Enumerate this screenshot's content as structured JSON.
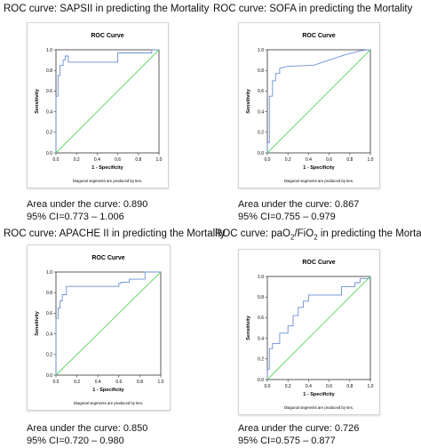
{
  "diagonal_note": "Diagonal segments are produced by ties.",
  "panels": [
    {
      "caption": "ROC curve: SAPSII in predicting the Mortality",
      "auc_label": "Area under the curve: 0.890",
      "ci_label": "95% CI=0.773 – 1.006"
    },
    {
      "caption": "ROC curve: SOFA in predicting the Mortality",
      "auc_label": "Area under the curve: 0.867",
      "ci_label": "95% CI=0.755 – 0.979"
    },
    {
      "caption": "ROC curve: APACHE II in predicting the Mortality",
      "auc_label": "Area under the curve: 0.850",
      "ci_label": "95% CI=0.720 – 0.980"
    },
    {
      "caption_prefix": "ROC curve: paO",
      "caption_sub1": "2",
      "caption_mid": "/FiO",
      "caption_sub2": "2",
      "caption_suffix": " in predicting the Mortality",
      "auc_label": "Area under the curve: 0.726",
      "ci_label": "95% CI=0.575 – 0.877"
    }
  ],
  "chart_data": [
    {
      "type": "line",
      "title": "ROC Curve",
      "xlabel": "1 - Specificity",
      "ylabel": "Sensitivity",
      "xlim": [
        0,
        1
      ],
      "ylim": [
        0,
        1
      ],
      "x_ticks": [
        "0.0",
        "0.2",
        "0.4",
        "0.6",
        "0.8",
        "1.0"
      ],
      "y_ticks": [
        "0.0",
        "0.2",
        "0.4",
        "0.6",
        "0.8",
        "1.0"
      ],
      "series": [
        {
          "color": "#6b8fd6",
          "x": [
            0,
            0,
            0.02,
            0.02,
            0.04,
            0.04,
            0.07,
            0.07,
            0.09,
            0.09,
            0.12,
            0.12,
            0.53,
            0.53,
            0.6,
            0.6,
            0.93,
            0.93,
            1.0
          ],
          "y": [
            0,
            0.55,
            0.55,
            0.75,
            0.75,
            0.85,
            0.85,
            0.9,
            0.9,
            0.94,
            0.94,
            0.88,
            0.88,
            0.88,
            0.88,
            0.97,
            0.97,
            1.0,
            1.0
          ]
        },
        {
          "color": "#5cd65c",
          "x": [
            0,
            1
          ],
          "y": [
            0,
            1
          ]
        }
      ]
    },
    {
      "type": "line",
      "title": "ROC Curve",
      "xlabel": "1 - Specificity",
      "ylabel": "Sensitivity",
      "xlim": [
        0,
        1
      ],
      "ylim": [
        0,
        1
      ],
      "x_ticks": [
        "0.0",
        "0.2",
        "0.4",
        "0.6",
        "0.8",
        "1.0"
      ],
      "y_ticks": [
        "0.0",
        "0.2",
        "0.4",
        "0.6",
        "0.8",
        "1.0"
      ],
      "series": [
        {
          "color": "#6b8fd6",
          "x": [
            0,
            0,
            0.02,
            0.02,
            0.05,
            0.05,
            0.08,
            0.08,
            0.12,
            0.12,
            0.2,
            0.45,
            0.6,
            0.75,
            0.9,
            0.97,
            1.0
          ],
          "y": [
            0,
            0.1,
            0.1,
            0.55,
            0.55,
            0.7,
            0.7,
            0.77,
            0.77,
            0.82,
            0.84,
            0.85,
            0.9,
            0.95,
            0.99,
            1.0,
            1.0
          ]
        },
        {
          "color": "#5cd65c",
          "x": [
            0,
            1
          ],
          "y": [
            0,
            1
          ]
        }
      ]
    },
    {
      "type": "line",
      "title": "ROC Curve",
      "xlabel": "1 - Specificity",
      "ylabel": "Sensitivity",
      "xlim": [
        0,
        1
      ],
      "ylim": [
        0,
        1
      ],
      "x_ticks": [
        "0.0",
        "0.2",
        "0.4",
        "0.6",
        "0.8",
        "1.0"
      ],
      "y_ticks": [
        "0.0",
        "0.2",
        "0.4",
        "0.6",
        "0.8",
        "1.0"
      ],
      "series": [
        {
          "color": "#6b8fd6",
          "x": [
            0,
            0,
            0.02,
            0.02,
            0.04,
            0.04,
            0.06,
            0.06,
            0.1,
            0.1,
            0.6,
            0.6,
            0.62,
            0.62,
            0.7,
            0.7,
            0.85,
            0.85,
            1.0
          ],
          "y": [
            0,
            0.55,
            0.55,
            0.65,
            0.65,
            0.72,
            0.72,
            0.78,
            0.78,
            0.86,
            0.86,
            0.89,
            0.89,
            0.9,
            0.9,
            0.93,
            0.93,
            1.0,
            1.0
          ]
        },
        {
          "color": "#5cd65c",
          "x": [
            0,
            1
          ],
          "y": [
            0,
            1
          ]
        }
      ]
    },
    {
      "type": "line",
      "title": "ROC Curve",
      "xlabel": "1 - Specificity",
      "ylabel": "Sensitivity",
      "xlim": [
        0,
        1
      ],
      "ylim": [
        0,
        1
      ],
      "x_ticks": [
        "0.0",
        "0.2",
        "0.4",
        "0.6",
        "0.8",
        "1.0"
      ],
      "y_ticks": [
        "0.0",
        "0.2",
        "0.4",
        "0.6",
        "0.8",
        "1.0"
      ],
      "series": [
        {
          "color": "#6b8fd6",
          "x": [
            0,
            0,
            0.02,
            0.02,
            0.05,
            0.05,
            0.12,
            0.12,
            0.2,
            0.2,
            0.25,
            0.25,
            0.3,
            0.3,
            0.35,
            0.35,
            0.4,
            0.4,
            0.72,
            0.72,
            0.85,
            0.85,
            0.9,
            0.9,
            1.0,
            1.0
          ],
          "y": [
            0,
            0.1,
            0.1,
            0.3,
            0.3,
            0.35,
            0.35,
            0.45,
            0.45,
            0.52,
            0.52,
            0.62,
            0.62,
            0.7,
            0.7,
            0.76,
            0.76,
            0.82,
            0.82,
            0.9,
            0.9,
            0.94,
            0.94,
            0.98,
            0.98,
            1.0
          ]
        },
        {
          "color": "#5cd65c",
          "x": [
            0,
            1
          ],
          "y": [
            0,
            1
          ]
        }
      ]
    }
  ]
}
